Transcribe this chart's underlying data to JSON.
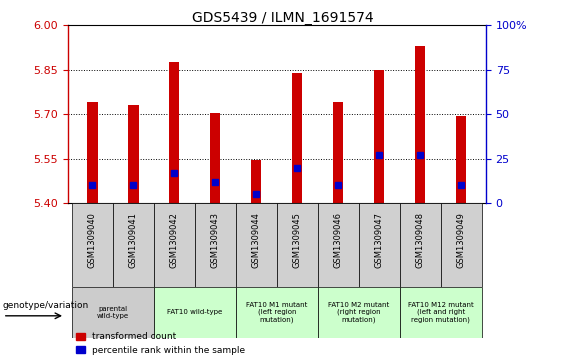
{
  "title": "GDS5439 / ILMN_1691574",
  "samples": [
    "GSM1309040",
    "GSM1309041",
    "GSM1309042",
    "GSM1309043",
    "GSM1309044",
    "GSM1309045",
    "GSM1309046",
    "GSM1309047",
    "GSM1309048",
    "GSM1309049"
  ],
  "transformed_count": [
    5.74,
    5.73,
    5.875,
    5.705,
    5.545,
    5.838,
    5.74,
    5.85,
    5.93,
    5.695
  ],
  "percentile_rank": [
    10,
    10,
    17,
    12,
    5,
    20,
    10,
    27,
    27,
    10
  ],
  "ylim_left": [
    5.4,
    6.0
  ],
  "ylim_right": [
    0,
    100
  ],
  "yticks_left": [
    5.4,
    5.55,
    5.7,
    5.85,
    6.0
  ],
  "yticks_right": [
    0,
    25,
    50,
    75,
    100
  ],
  "bar_width": 0.25,
  "bar_color_red": "#cc0000",
  "bar_color_blue": "#0000cc",
  "left_axis_color": "#cc0000",
  "right_axis_color": "#0000cc",
  "grid_color": "black",
  "genotype_label": "genotype/variation",
  "genotype_groups": [
    {
      "label": "parental\nwild-type",
      "samples": [
        0,
        1
      ],
      "color": "#cccccc"
    },
    {
      "label": "FAT10 wild-type",
      "samples": [
        2,
        3
      ],
      "color": "#ccffcc"
    },
    {
      "label": "FAT10 M1 mutant\n(left region\nmutation)",
      "samples": [
        4,
        5
      ],
      "color": "#ccffcc"
    },
    {
      "label": "FAT10 M2 mutant\n(right region\nmutation)",
      "samples": [
        6,
        7
      ],
      "color": "#ccffcc"
    },
    {
      "label": "FAT10 M12 mutant\n(left and right\nregion mutation)",
      "samples": [
        8,
        9
      ],
      "color": "#ccffcc"
    }
  ],
  "legend_red_label": "transformed count",
  "legend_blue_label": "percentile rank within the sample",
  "blue_marker_size": 5
}
